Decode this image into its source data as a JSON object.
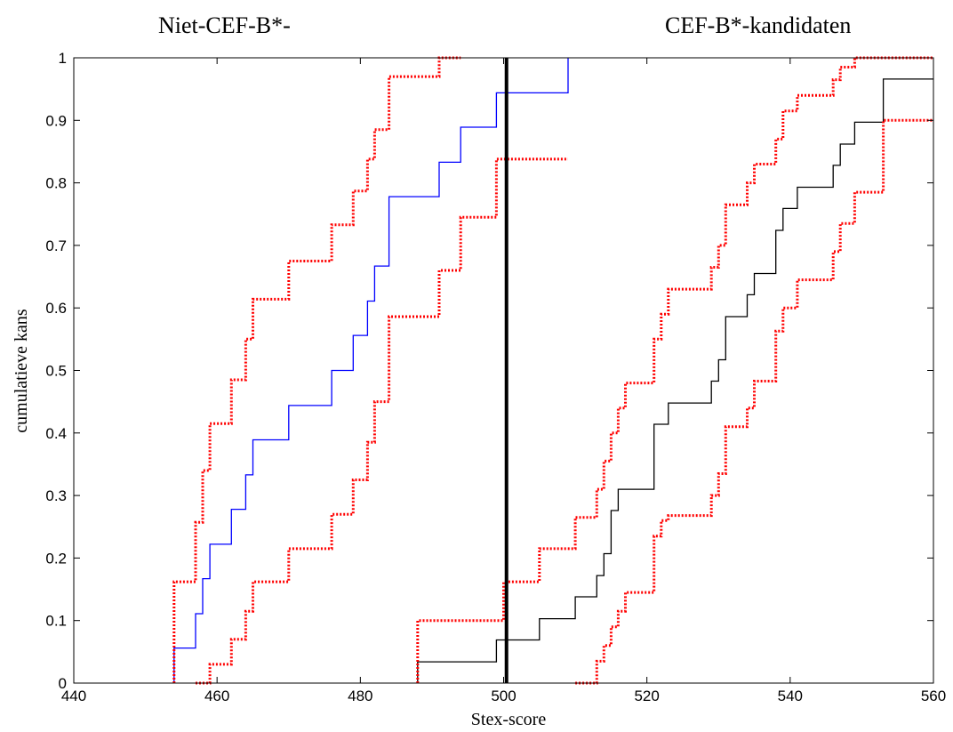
{
  "header_left": "Niet-CEF-B*-",
  "header_right": "CEF-B*-kandidaten",
  "colors": {
    "blue_series": "#0000ff",
    "black_series": "#000000",
    "bands": "#ff0000",
    "threshold": "#000000"
  },
  "chart_data": {
    "type": "line",
    "subtype": "step (empirical cumulative distribution)",
    "xlabel": "Stex-score",
    "ylabel": "cumulatieve kans",
    "xlim": [
      440,
      560
    ],
    "ylim": [
      0,
      1
    ],
    "xticks": [
      440,
      460,
      480,
      500,
      520,
      540,
      560
    ],
    "yticks": [
      0,
      0.1,
      0.2,
      0.3,
      0.4,
      0.5,
      0.6,
      0.7,
      0.8,
      0.9,
      1
    ],
    "grid": false,
    "legend": "none",
    "threshold_x": 500.4,
    "series": [
      {
        "color": "blue",
        "style": "solid",
        "x": [
          454,
          457,
          458,
          459,
          462,
          464,
          465,
          470,
          476,
          479,
          481,
          482,
          484,
          491,
          494,
          499,
          509
        ],
        "y": [
          0.056,
          0.111,
          0.167,
          0.222,
          0.278,
          0.333,
          0.389,
          0.444,
          0.5,
          0.556,
          0.611,
          0.667,
          0.778,
          0.833,
          0.889,
          0.944,
          1.0
        ]
      },
      {
        "color": "red",
        "style": "dotted",
        "x": [
          454,
          457,
          458,
          459,
          462,
          464,
          465,
          470,
          476,
          479,
          481,
          482,
          484,
          491,
          494
        ],
        "y": [
          0.162,
          0.257,
          0.34,
          0.415,
          0.485,
          0.55,
          0.614,
          0.675,
          0.733,
          0.787,
          0.838,
          0.885,
          0.97,
          1.0,
          1.0
        ]
      },
      {
        "color": "red",
        "style": "dotted",
        "x": [
          457,
          459,
          462,
          464,
          465,
          470,
          476,
          479,
          481,
          482,
          484,
          491,
          494,
          499,
          509
        ],
        "y": [
          0.0,
          0.03,
          0.07,
          0.115,
          0.162,
          0.215,
          0.27,
          0.325,
          0.385,
          0.45,
          0.586,
          0.66,
          0.745,
          0.838,
          0.838
        ]
      },
      {
        "color": "black",
        "style": "solid",
        "x": [
          488,
          499,
          505,
          510,
          513,
          514,
          515,
          516,
          517,
          521,
          522,
          523,
          529,
          530,
          531,
          534,
          535,
          538,
          539,
          541,
          546,
          547,
          549,
          553,
          560
        ],
        "y": [
          0.034,
          0.069,
          0.103,
          0.138,
          0.172,
          0.207,
          0.276,
          0.31,
          0.31,
          0.414,
          0.414,
          0.448,
          0.483,
          0.517,
          0.586,
          0.621,
          0.655,
          0.724,
          0.759,
          0.793,
          0.828,
          0.862,
          0.897,
          0.966,
          0.966
        ]
      },
      {
        "color": "red",
        "style": "dotted",
        "x": [
          488,
          500,
          505,
          510,
          513,
          514,
          515,
          516,
          517,
          521,
          522,
          523,
          529,
          530,
          531,
          534,
          535,
          538,
          539,
          541,
          546,
          547,
          549,
          560
        ],
        "y": [
          0.1,
          0.162,
          0.215,
          0.265,
          0.31,
          0.355,
          0.4,
          0.44,
          0.48,
          0.55,
          0.59,
          0.63,
          0.665,
          0.7,
          0.765,
          0.8,
          0.83,
          0.87,
          0.915,
          0.94,
          0.965,
          0.985,
          1.0,
          1.0
        ]
      },
      {
        "color": "red",
        "style": "dotted",
        "x": [
          510,
          513,
          514,
          515,
          516,
          517,
          521,
          522,
          523,
          529,
          530,
          531,
          534,
          535,
          538,
          539,
          541,
          546,
          547,
          549,
          553,
          560
        ],
        "y": [
          0.0,
          0.035,
          0.06,
          0.09,
          0.115,
          0.145,
          0.235,
          0.26,
          0.268,
          0.3,
          0.335,
          0.41,
          0.44,
          0.483,
          0.563,
          0.6,
          0.645,
          0.69,
          0.735,
          0.785,
          0.9,
          0.9
        ]
      }
    ]
  }
}
